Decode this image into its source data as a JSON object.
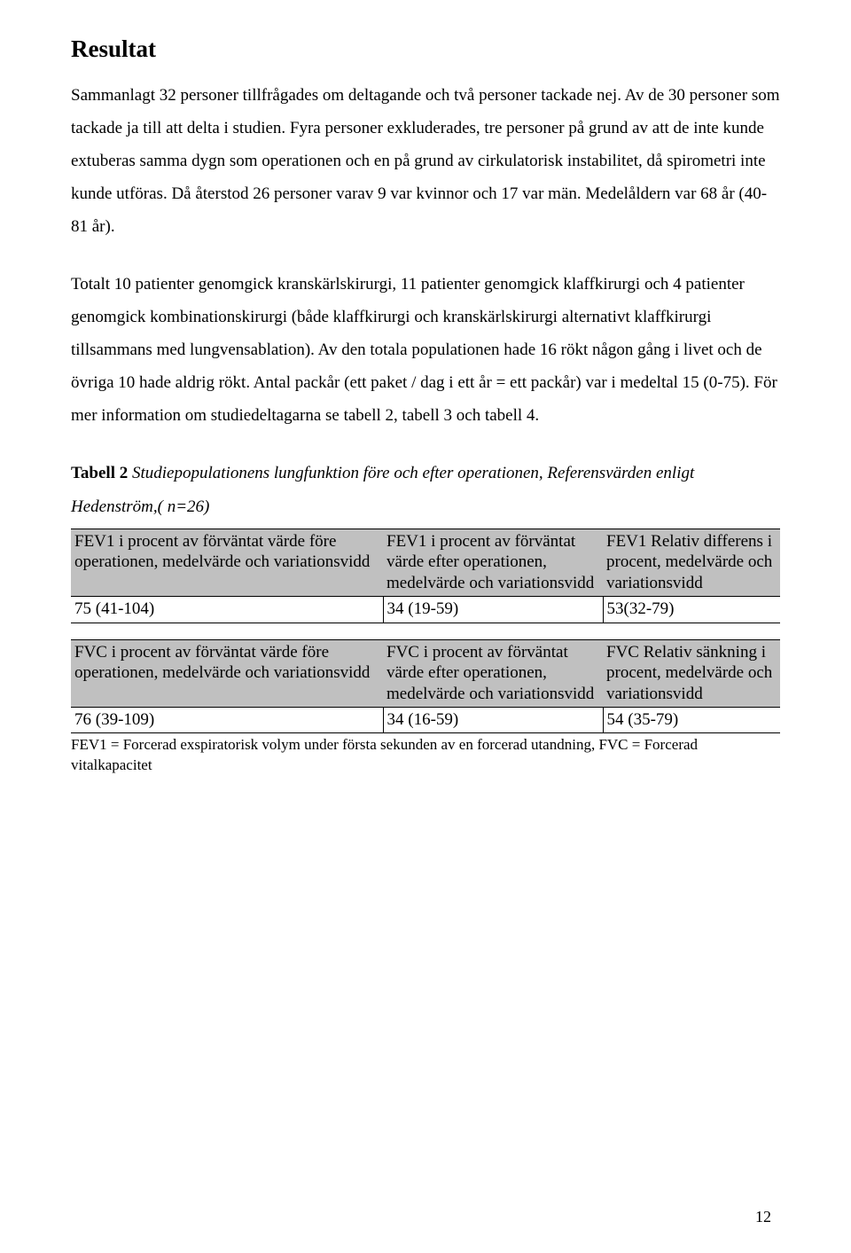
{
  "title": "Resultat",
  "para1": "Sammanlagt 32 personer tillfrågades om deltagande och två personer tackade nej. Av de 30 personer som tackade ja till att delta i studien. Fyra personer exkluderades, tre personer på grund av att de inte kunde extuberas samma dygn som operationen och en på grund av cirkulatorisk instabilitet, då spirometri inte kunde utföras. Då återstod 26 personer varav 9 var kvinnor och 17 var män. Medelåldern var 68 år (40-81 år).",
  "para2": "Totalt 10 patienter genomgick kranskärlskirurgi, 11 patienter genomgick klaffkirurgi och 4 patienter genomgick kombinationskirurgi (både klaffkirurgi och kranskärlskirurgi alternativt klaffkirurgi tillsammans med lungvensablation). Av den totala populationen hade 16 rökt någon gång i livet och de övriga 10 hade aldrig rökt. Antal packår (ett paket / dag i ett år = ett packår) var i medeltal 15 (0-75). För mer information om studiedeltagarna se tabell 2, tabell 3 och tabell 4.",
  "table_caption_bold": "Tabell 2",
  "table_caption_ital": "Studiepopulationens lungfunktion före och efter operationen, Referensvärden enligt Hedenström,( n=26)",
  "table": {
    "row1": {
      "c1": "FEV1 i procent av förväntat värde före operationen, medelvärde och variationsvidd",
      "c2": "FEV1 i procent av förväntat värde efter operationen, medelvärde och variationsvidd",
      "c3": "FEV1 Relativ differens i procent, medelvärde och variationsvidd"
    },
    "row1v": {
      "c1": "75 (41-104)",
      "c2": "34 (19-59)",
      "c3": "53(32-79)"
    },
    "row2": {
      "c1": "FVC i procent av förväntat värde före operationen, medelvärde och variationsvidd",
      "c2": "FVC i procent av förväntat värde efter operationen, medelvärde och variationsvidd",
      "c3": "FVC Relativ sänkning i procent, medelvärde och variationsvidd"
    },
    "row2v": {
      "c1": "76 (39-109)",
      "c2": "34 (16-59)",
      "c3": "54 (35-79)"
    }
  },
  "footnote": "FEV1 = Forcerad exspiratorisk volym under första sekunden av en forcerad utandning, FVC = Forcerad vitalkapacitet",
  "page_number": "12",
  "colors": {
    "header_bg": "#c0c0c0",
    "text": "#000000",
    "page_bg": "#ffffff",
    "border": "#000000"
  }
}
